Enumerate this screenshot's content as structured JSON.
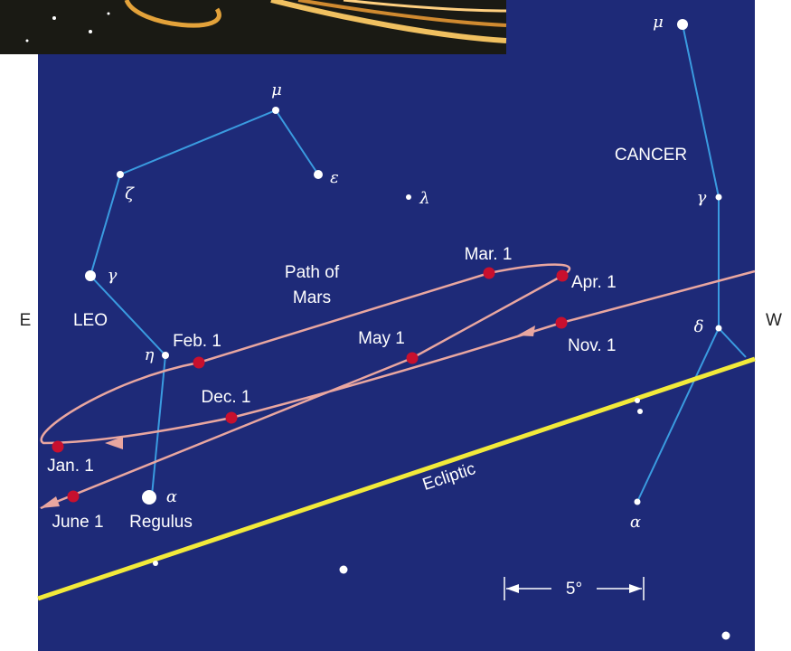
{
  "directions": {
    "east": "E",
    "west": "W"
  },
  "constellations": [
    "LEO",
    "CANCER"
  ],
  "stars": [
    "μ",
    "ε",
    "ζ",
    "γ",
    "η",
    "α",
    "λ",
    "μ",
    "γ",
    "δ",
    "α"
  ],
  "star_name": "Regulus",
  "path": {
    "label": [
      "Path of",
      "Mars"
    ],
    "dates": [
      "Nov. 1",
      "Dec. 1",
      "Jan. 1",
      "Feb. 1",
      "Mar. 1",
      "Apr. 1",
      "May 1",
      "June 1"
    ]
  },
  "ecliptic": "Ecliptic",
  "scale": "5°"
}
